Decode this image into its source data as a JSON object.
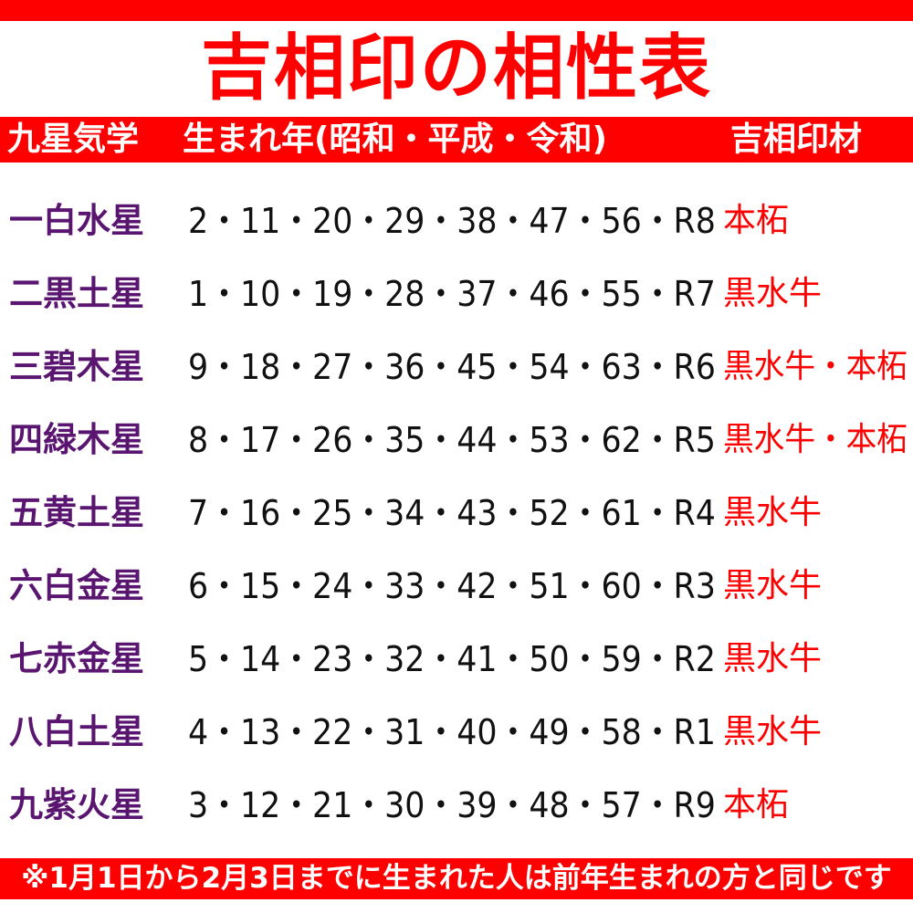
{
  "title": "吉相印の相性表",
  "header": {
    "col_star": "九星気学",
    "col_years": "生まれ年(昭和・平成・令和)",
    "col_material": "吉相印材"
  },
  "rows": [
    {
      "star": "一白水星",
      "years": "2・11・20・29・38・47・56・R8",
      "material": "本柘"
    },
    {
      "star": "二黒土星",
      "years": "1・10・19・28・37・46・55・R7",
      "material": "黒水牛"
    },
    {
      "star": "三碧木星",
      "years": "9・18・27・36・45・54・63・R6",
      "material": "黒水牛・本柘"
    },
    {
      "star": "四緑木星",
      "years": "8・17・26・35・44・53・62・R5",
      "material": "黒水牛・本柘"
    },
    {
      "star": "五黄土星",
      "years": "7・16・25・34・43・52・61・R4",
      "material": "黒水牛"
    },
    {
      "star": "六白金星",
      "years": "6・15・24・33・42・51・60・R3",
      "material": "黒水牛"
    },
    {
      "star": "七赤金星",
      "years": "5・14・23・32・41・50・59・R2",
      "material": "黒水牛"
    },
    {
      "star": "八白土星",
      "years": "4・13・22・31・40・49・58・R1",
      "material": "黒水牛"
    },
    {
      "star": "九紫火星",
      "years": "3・12・21・30・39・48・57・R9",
      "material": "本柘"
    }
  ],
  "footer": "※1月1日から2月3日までに生まれた人は前年生まれの方と同じです",
  "colors": {
    "accent": "#ff0000",
    "star": "#5a1570"
  }
}
